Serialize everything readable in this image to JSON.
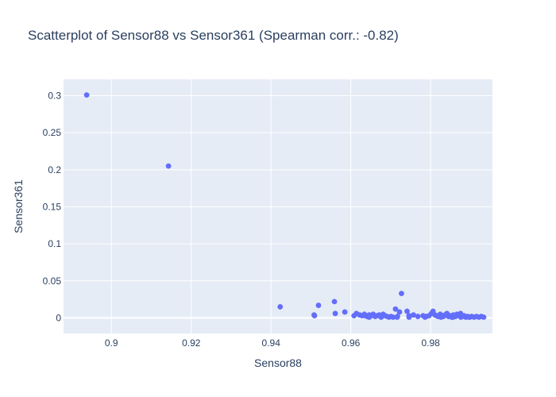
{
  "chart_data": {
    "type": "scatter",
    "title": "Scatterplot of Sensor88 vs Sensor361 (Spearman corr.: -0.82)",
    "xlabel": "Sensor88",
    "ylabel": "Sensor361",
    "xlim": [
      0.888,
      0.9955
    ],
    "ylim": [
      -0.021,
      0.322
    ],
    "x_ticks": [
      0.9,
      0.92,
      0.94,
      0.96,
      0.98
    ],
    "x_tick_labels": [
      "0.9",
      "0.92",
      "0.94",
      "0.96",
      "0.98"
    ],
    "y_ticks": [
      0,
      0.05,
      0.1,
      0.15,
      0.2,
      0.25,
      0.3
    ],
    "y_tick_labels": [
      "0",
      "0.05",
      "0.1",
      "0.15",
      "0.2",
      "0.25",
      "0.3"
    ],
    "grid": true,
    "colors": {
      "marker": "#636efa",
      "plot_bg": "#e5ecf6",
      "grid": "#ffffff",
      "text": "#2a3f5f"
    },
    "series": [
      {
        "x": [
          0.8938,
          0.9143,
          0.9423,
          0.9508,
          0.9509,
          0.9519,
          0.9559,
          0.9561,
          0.9585,
          0.9608,
          0.9614,
          0.9622,
          0.9628,
          0.9634,
          0.9641,
          0.9646,
          0.9651,
          0.9656,
          0.9661,
          0.9666,
          0.9671,
          0.9676,
          0.9681,
          0.9686,
          0.9691,
          0.9696,
          0.9701,
          0.9706,
          0.9712,
          0.9717,
          0.9722,
          0.9727,
          0.9741,
          0.9746,
          0.9757,
          0.9768,
          0.9781,
          0.9789,
          0.9796,
          0.9802,
          0.9806,
          0.9811,
          0.9815,
          0.9819,
          0.9824,
          0.9828,
          0.9832,
          0.9836,
          0.9841,
          0.9845,
          0.9849,
          0.9853,
          0.9857,
          0.9862,
          0.9866,
          0.9871,
          0.9875,
          0.9879,
          0.9884,
          0.9888,
          0.9893,
          0.9898,
          0.9903,
          0.9909,
          0.9915,
          0.9921,
          0.9927,
          0.9933,
          0.9646,
          0.9676,
          0.9716,
          0.9746,
          0.9786,
          0.9826,
          0.9856,
          0.9876,
          0.9896,
          0.9636
        ],
        "y": [
          0.301,
          0.205,
          0.015,
          0.004,
          0.003,
          0.017,
          0.022,
          0.006,
          0.008,
          0.003,
          0.006,
          0.004,
          0.003,
          0.005,
          0.002,
          0.004,
          0.003,
          0.005,
          0.002,
          0.003,
          0.004,
          0.002,
          0.005,
          0.003,
          0.002,
          0.001,
          0.002,
          0.001,
          0.012,
          0.002,
          0.008,
          0.033,
          0.009,
          0.003,
          0.004,
          0.002,
          0.003,
          0.002,
          0.003,
          0.006,
          0.009,
          0.004,
          0.003,
          0.002,
          0.005,
          0.003,
          0.002,
          0.004,
          0.006,
          0.002,
          0.003,
          0.001,
          0.004,
          0.002,
          0.005,
          0.003,
          0.006,
          0.002,
          0.003,
          0.001,
          0.002,
          0.001,
          0.002,
          0.001,
          0.002,
          0.001,
          0.002,
          0.001,
          0.001,
          0.001,
          0.001,
          0.001,
          0.001,
          0.001,
          0.001,
          0.001,
          0.001,
          0.003
        ]
      }
    ]
  }
}
